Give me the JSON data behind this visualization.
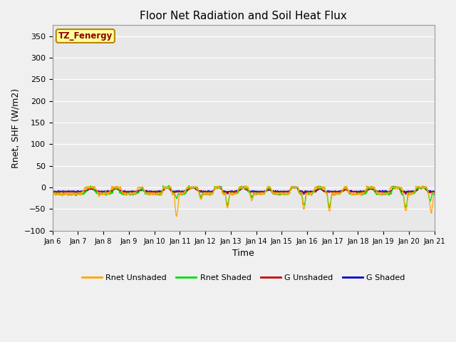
{
  "title": "Floor Net Radiation and Soil Heat Flux",
  "xlabel": "Time",
  "ylabel": "Rnet, SHF (W/m2)",
  "ylim": [
    -100,
    375
  ],
  "xlim": [
    0,
    360
  ],
  "fig_bg_color": "#f0f0f0",
  "plot_bg_color": "#e8e8e8",
  "colors": {
    "rnet_unshaded": "#FFA500",
    "rnet_shaded": "#00DD00",
    "g_unshaded": "#CC0000",
    "g_shaded": "#0000CC"
  },
  "legend_labels": [
    "Rnet Unshaded",
    "Rnet Shaded",
    "G Unshaded",
    "G Shaded"
  ],
  "watermark_text": "TZ_Fenergy",
  "watermark_color": "#8B0000",
  "watermark_bg": "#FFFF99",
  "watermark_border": "#B8860B",
  "tick_labels": [
    "Jan 6",
    "Jan 7",
    "Jan 8",
    "Jan 9",
    "Jan 10",
    "Jan 11",
    "Jan 12",
    "Jan 13",
    "Jan 14",
    "Jan 15",
    "Jan 16",
    "Jan 17",
    "Jan 18",
    "Jan 19",
    "Jan 20",
    "Jan 21"
  ],
  "yticks": [
    -100,
    -50,
    0,
    50,
    100,
    150,
    200,
    250,
    300,
    350
  ],
  "grid_color": "#ffffff",
  "title_fontsize": 11,
  "axis_fontsize": 9,
  "tick_fontsize": 7,
  "legend_fontsize": 8
}
